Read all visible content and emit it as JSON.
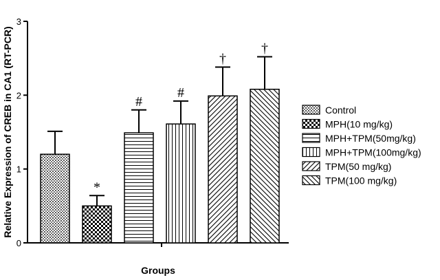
{
  "chart_data": {
    "type": "bar",
    "categories": [
      "Control",
      "MPH(10 mg/kg)",
      "MPH+TPM(50mg/kg)",
      "MPH+TPM(100mg/kg)",
      "TPM(50 mg/kg)",
      "TPM(100 mg/kg)"
    ],
    "values": [
      1.2,
      0.5,
      1.49,
      1.61,
      1.99,
      2.08
    ],
    "errors": [
      0.31,
      0.14,
      0.31,
      0.31,
      0.39,
      0.44
    ],
    "annotations": [
      "",
      "*",
      "#",
      "#",
      "†",
      "†"
    ],
    "patterns": [
      "grid",
      "checker",
      "horizontal",
      "vertical",
      "diagonal-up",
      "diagonal-down"
    ],
    "xlabel": "Groups",
    "ylabel": "Relative Expression of CREB in CA1 (RT-PCR)",
    "ylim": [
      0,
      3
    ],
    "yticks": [
      0,
      1,
      2,
      3
    ],
    "legend_position": "right",
    "grid": false
  }
}
